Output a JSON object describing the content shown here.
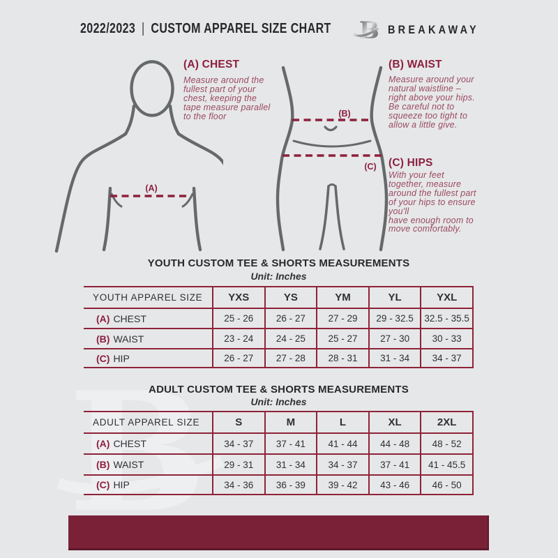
{
  "header": {
    "season": "2022/2023",
    "separator": "|",
    "title": "CUSTOM APPAREL SIZE CHART",
    "brand": "BREAKAWAY",
    "logo_letter": "B"
  },
  "guide": {
    "chest": {
      "heading": "(A) CHEST",
      "marker": "(A)",
      "text": "Measure around the\nfullest part of your\nchest, keeping the\ntape measure parallel\nto the floor"
    },
    "waist": {
      "heading": "(B) WAIST",
      "marker": "(B)",
      "text": "Measure around your\nnatural waistline –\nright above your hips.\nBe careful not to\nsqueeze too tight to\nallow a little give."
    },
    "hips": {
      "heading": "(C) HIPS",
      "marker": "(C)",
      "text": "With your feet\ntogether, measure\naround the fullest part\nof your hips to ensure\nyou'll\nhave enough room to\nmove comfortably."
    }
  },
  "youth": {
    "title": "YOUTH CUSTOM TEE & SHORTS MEASUREMENTS",
    "unit": "Unit: Inches",
    "columns": [
      "YOUTH APPAREL SIZE",
      "YXS",
      "YS",
      "YM",
      "YL",
      "YXL"
    ],
    "rows": [
      {
        "marker": "(A)",
        "label": "CHEST",
        "values": [
          "25 - 26",
          "26 - 27",
          "27 - 29",
          "29 - 32.5",
          "32.5 - 35.5"
        ]
      },
      {
        "marker": "(B)",
        "label": "WAIST",
        "values": [
          "23 - 24",
          "24 - 25",
          "25 - 27",
          "27 - 30",
          "30 - 33"
        ]
      },
      {
        "marker": "(C)",
        "label": "HIP",
        "values": [
          "26 - 27",
          "27 - 28",
          "28 - 31",
          "31 - 34",
          "34 - 37"
        ]
      }
    ]
  },
  "adult": {
    "title": "ADULT CUSTOM TEE & SHORTS MEASUREMENTS",
    "unit": "Unit: Inches",
    "columns": [
      "ADULT APPAREL SIZE",
      "S",
      "M",
      "L",
      "XL",
      "2XL"
    ],
    "rows": [
      {
        "marker": "(A)",
        "label": "CHEST",
        "values": [
          "34 - 37",
          "37 - 41",
          "41 - 44",
          "44 - 48",
          "48 - 52"
        ]
      },
      {
        "marker": "(B)",
        "label": "WAIST",
        "values": [
          "29 - 31",
          "31 - 34",
          "34 - 37",
          "37 - 41",
          "41 - 45.5"
        ]
      },
      {
        "marker": "(C)",
        "label": "HIP",
        "values": [
          "34 - 36",
          "36 - 39",
          "39 - 42",
          "43 - 46",
          "46 - 50"
        ]
      }
    ]
  },
  "watermark": "B",
  "colors": {
    "background": "#e6e7e8",
    "accent_maroon": "#8c1f3f",
    "footer_bar": "#7a2138",
    "table_line": "#8e2339",
    "text_dark": "#2e3033",
    "figure_gray": "#66696b"
  }
}
